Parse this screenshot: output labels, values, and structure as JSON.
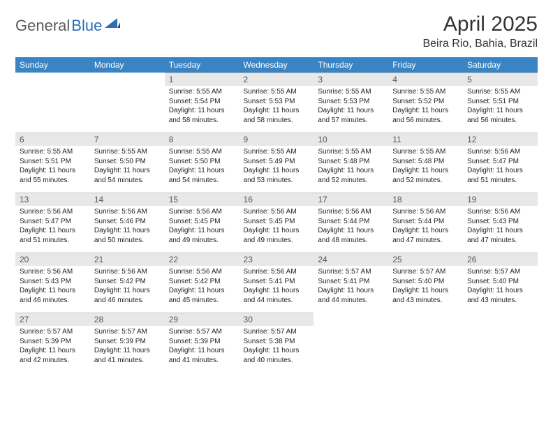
{
  "logo": {
    "text1": "General",
    "text2": "Blue"
  },
  "title": "April 2025",
  "location": "Beira Rio, Bahia, Brazil",
  "colors": {
    "header_bg": "#3b84c4",
    "header_text": "#ffffff",
    "daynum_bg": "#e8e8e8",
    "border": "#c4c4c4",
    "logo_gray": "#5a5a5a",
    "logo_blue": "#2a6db8"
  },
  "typography": {
    "title_size": 30,
    "location_size": 16,
    "weekday_size": 12,
    "daynum_size": 12,
    "body_size": 10
  },
  "weekdays": [
    "Sunday",
    "Monday",
    "Tuesday",
    "Wednesday",
    "Thursday",
    "Friday",
    "Saturday"
  ],
  "grid": {
    "rows": 5,
    "cols": 7,
    "first_index": 2,
    "last_day": 30
  },
  "days": {
    "1": {
      "sunrise": "Sunrise: 5:55 AM",
      "sunset": "Sunset: 5:54 PM",
      "daylight": "Daylight: 11 hours and 58 minutes."
    },
    "2": {
      "sunrise": "Sunrise: 5:55 AM",
      "sunset": "Sunset: 5:53 PM",
      "daylight": "Daylight: 11 hours and 58 minutes."
    },
    "3": {
      "sunrise": "Sunrise: 5:55 AM",
      "sunset": "Sunset: 5:53 PM",
      "daylight": "Daylight: 11 hours and 57 minutes."
    },
    "4": {
      "sunrise": "Sunrise: 5:55 AM",
      "sunset": "Sunset: 5:52 PM",
      "daylight": "Daylight: 11 hours and 56 minutes."
    },
    "5": {
      "sunrise": "Sunrise: 5:55 AM",
      "sunset": "Sunset: 5:51 PM",
      "daylight": "Daylight: 11 hours and 56 minutes."
    },
    "6": {
      "sunrise": "Sunrise: 5:55 AM",
      "sunset": "Sunset: 5:51 PM",
      "daylight": "Daylight: 11 hours and 55 minutes."
    },
    "7": {
      "sunrise": "Sunrise: 5:55 AM",
      "sunset": "Sunset: 5:50 PM",
      "daylight": "Daylight: 11 hours and 54 minutes."
    },
    "8": {
      "sunrise": "Sunrise: 5:55 AM",
      "sunset": "Sunset: 5:50 PM",
      "daylight": "Daylight: 11 hours and 54 minutes."
    },
    "9": {
      "sunrise": "Sunrise: 5:55 AM",
      "sunset": "Sunset: 5:49 PM",
      "daylight": "Daylight: 11 hours and 53 minutes."
    },
    "10": {
      "sunrise": "Sunrise: 5:55 AM",
      "sunset": "Sunset: 5:48 PM",
      "daylight": "Daylight: 11 hours and 52 minutes."
    },
    "11": {
      "sunrise": "Sunrise: 5:55 AM",
      "sunset": "Sunset: 5:48 PM",
      "daylight": "Daylight: 11 hours and 52 minutes."
    },
    "12": {
      "sunrise": "Sunrise: 5:56 AM",
      "sunset": "Sunset: 5:47 PM",
      "daylight": "Daylight: 11 hours and 51 minutes."
    },
    "13": {
      "sunrise": "Sunrise: 5:56 AM",
      "sunset": "Sunset: 5:47 PM",
      "daylight": "Daylight: 11 hours and 51 minutes."
    },
    "14": {
      "sunrise": "Sunrise: 5:56 AM",
      "sunset": "Sunset: 5:46 PM",
      "daylight": "Daylight: 11 hours and 50 minutes."
    },
    "15": {
      "sunrise": "Sunrise: 5:56 AM",
      "sunset": "Sunset: 5:45 PM",
      "daylight": "Daylight: 11 hours and 49 minutes."
    },
    "16": {
      "sunrise": "Sunrise: 5:56 AM",
      "sunset": "Sunset: 5:45 PM",
      "daylight": "Daylight: 11 hours and 49 minutes."
    },
    "17": {
      "sunrise": "Sunrise: 5:56 AM",
      "sunset": "Sunset: 5:44 PM",
      "daylight": "Daylight: 11 hours and 48 minutes."
    },
    "18": {
      "sunrise": "Sunrise: 5:56 AM",
      "sunset": "Sunset: 5:44 PM",
      "daylight": "Daylight: 11 hours and 47 minutes."
    },
    "19": {
      "sunrise": "Sunrise: 5:56 AM",
      "sunset": "Sunset: 5:43 PM",
      "daylight": "Daylight: 11 hours and 47 minutes."
    },
    "20": {
      "sunrise": "Sunrise: 5:56 AM",
      "sunset": "Sunset: 5:43 PM",
      "daylight": "Daylight: 11 hours and 46 minutes."
    },
    "21": {
      "sunrise": "Sunrise: 5:56 AM",
      "sunset": "Sunset: 5:42 PM",
      "daylight": "Daylight: 11 hours and 46 minutes."
    },
    "22": {
      "sunrise": "Sunrise: 5:56 AM",
      "sunset": "Sunset: 5:42 PM",
      "daylight": "Daylight: 11 hours and 45 minutes."
    },
    "23": {
      "sunrise": "Sunrise: 5:56 AM",
      "sunset": "Sunset: 5:41 PM",
      "daylight": "Daylight: 11 hours and 44 minutes."
    },
    "24": {
      "sunrise": "Sunrise: 5:57 AM",
      "sunset": "Sunset: 5:41 PM",
      "daylight": "Daylight: 11 hours and 44 minutes."
    },
    "25": {
      "sunrise": "Sunrise: 5:57 AM",
      "sunset": "Sunset: 5:40 PM",
      "daylight": "Daylight: 11 hours and 43 minutes."
    },
    "26": {
      "sunrise": "Sunrise: 5:57 AM",
      "sunset": "Sunset: 5:40 PM",
      "daylight": "Daylight: 11 hours and 43 minutes."
    },
    "27": {
      "sunrise": "Sunrise: 5:57 AM",
      "sunset": "Sunset: 5:39 PM",
      "daylight": "Daylight: 11 hours and 42 minutes."
    },
    "28": {
      "sunrise": "Sunrise: 5:57 AM",
      "sunset": "Sunset: 5:39 PM",
      "daylight": "Daylight: 11 hours and 41 minutes."
    },
    "29": {
      "sunrise": "Sunrise: 5:57 AM",
      "sunset": "Sunset: 5:39 PM",
      "daylight": "Daylight: 11 hours and 41 minutes."
    },
    "30": {
      "sunrise": "Sunrise: 5:57 AM",
      "sunset": "Sunset: 5:38 PM",
      "daylight": "Daylight: 11 hours and 40 minutes."
    }
  }
}
